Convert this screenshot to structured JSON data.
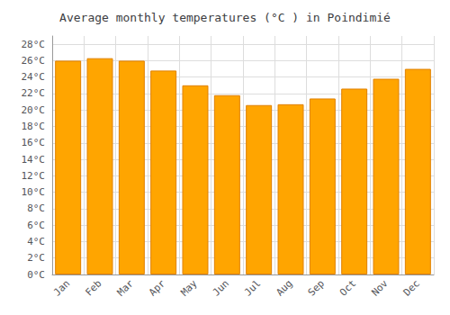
{
  "chart_data": {
    "type": "bar",
    "title": "Average monthly temperatures (°C ) in Poindimié",
    "categories": [
      "Jan",
      "Feb",
      "Mar",
      "Apr",
      "May",
      "Jun",
      "Jul",
      "Aug",
      "Sep",
      "Oct",
      "Nov",
      "Dec"
    ],
    "values": [
      26.0,
      26.3,
      26.0,
      24.8,
      23.0,
      21.8,
      20.6,
      20.7,
      21.4,
      22.6,
      23.8,
      25.0
    ],
    "color": "#FFA500",
    "ylim": [
      0,
      29
    ],
    "yticks": [
      {
        "value": 0,
        "label": "0°C"
      },
      {
        "value": 2,
        "label": "2°C"
      },
      {
        "value": 4,
        "label": "4°C"
      },
      {
        "value": 6,
        "label": "6°C"
      },
      {
        "value": 8,
        "label": "8°C"
      },
      {
        "value": 10,
        "label": "10°C"
      },
      {
        "value": 12,
        "label": "12°C"
      },
      {
        "value": 14,
        "label": "14°C"
      },
      {
        "value": 16,
        "label": "16°C"
      },
      {
        "value": 18,
        "label": "18°C"
      },
      {
        "value": 20,
        "label": "20°C"
      },
      {
        "value": 22,
        "label": "22°C"
      },
      {
        "value": 24,
        "label": "24°C"
      },
      {
        "value": 26,
        "label": "26°C"
      },
      {
        "value": 28,
        "label": "28°C"
      }
    ],
    "grid": true
  }
}
